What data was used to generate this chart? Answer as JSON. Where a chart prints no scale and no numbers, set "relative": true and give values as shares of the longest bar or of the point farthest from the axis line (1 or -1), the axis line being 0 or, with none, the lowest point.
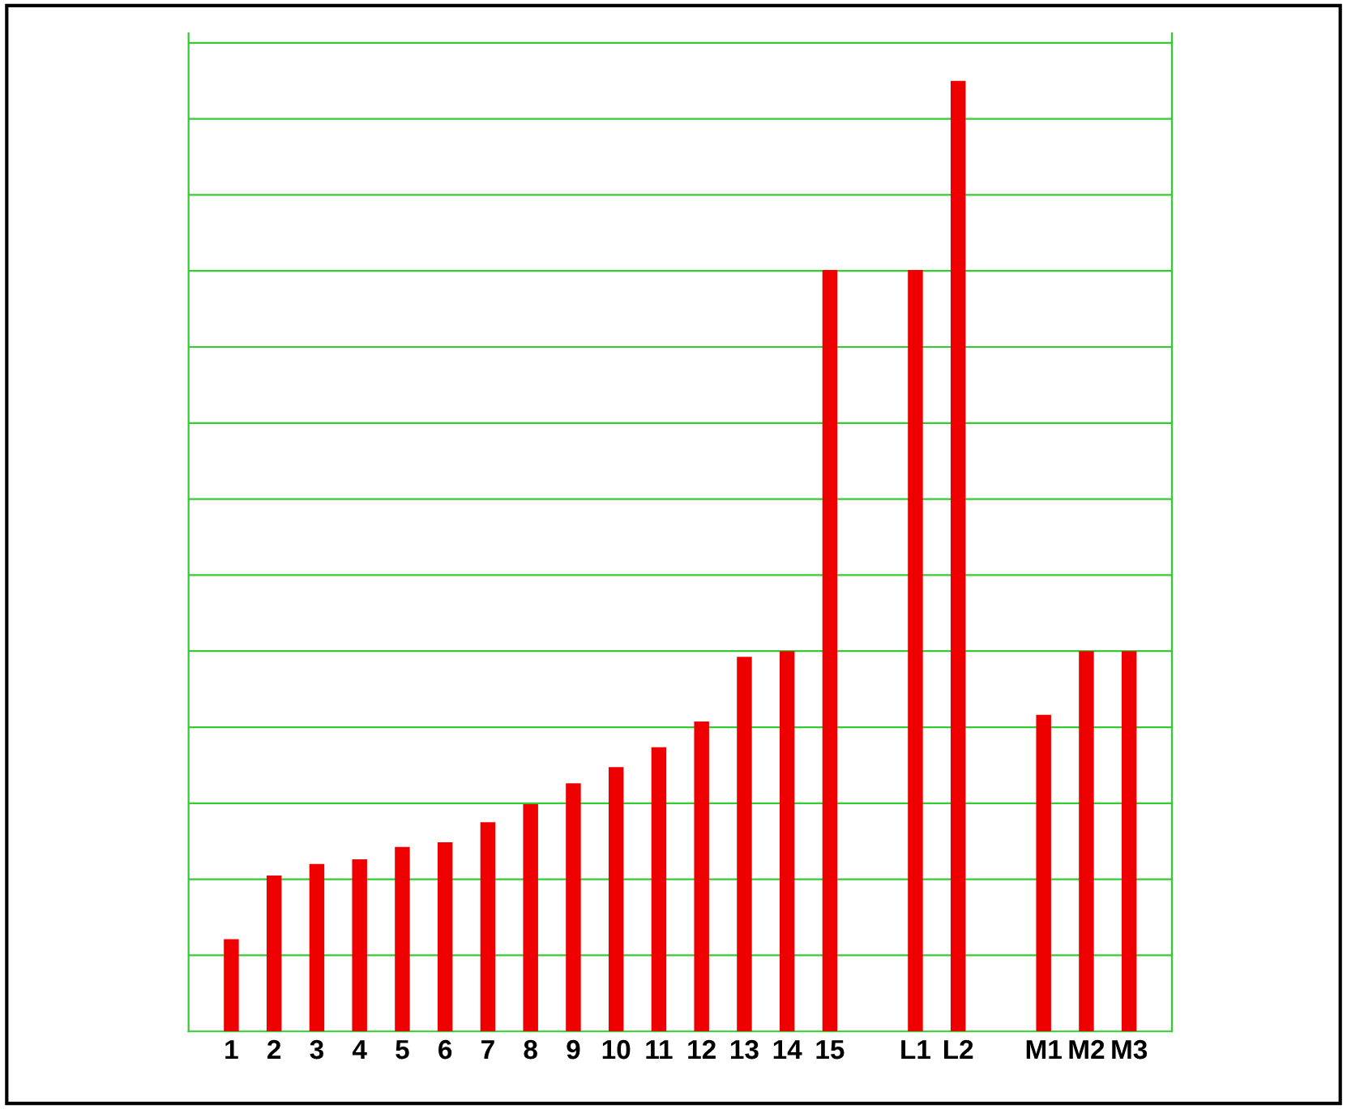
{
  "chart_data": {
    "type": "bar",
    "relative": true,
    "ref_lines": [
      {
        "axis": "y",
        "value": 0.08,
        "color": "#33cc33"
      },
      {
        "axis": "y",
        "value": 0.16,
        "color": "#33cc33"
      },
      {
        "axis": "y",
        "value": 0.24,
        "color": "#33cc33"
      },
      {
        "axis": "y",
        "value": 0.32,
        "color": "#33cc33"
      },
      {
        "axis": "y",
        "value": 0.4,
        "color": "#33cc33"
      },
      {
        "axis": "y",
        "value": 0.48,
        "color": "#33cc33"
      },
      {
        "axis": "y",
        "value": 0.56,
        "color": "#33cc33"
      },
      {
        "axis": "y",
        "value": 0.64,
        "color": "#33cc33"
      },
      {
        "axis": "y",
        "value": 0.72,
        "color": "#33cc33"
      },
      {
        "axis": "y",
        "value": 0.8,
        "color": "#33cc33"
      },
      {
        "axis": "y",
        "value": 0.88,
        "color": "#33cc33"
      },
      {
        "axis": "y",
        "value": 0.96,
        "color": "#33cc33"
      },
      {
        "axis": "y",
        "value": 1.04,
        "color": "#33cc33"
      }
    ],
    "categories": [
      "1",
      "2",
      "3",
      "4",
      "5",
      "6",
      "7",
      "8",
      "9",
      "10",
      "11",
      "12",
      "13",
      "14",
      "15",
      null,
      "L1",
      "L2",
      null,
      "M1",
      "M2",
      "M3"
    ],
    "values": [
      0.097,
      0.164,
      0.176,
      0.181,
      0.194,
      0.199,
      0.22,
      0.239,
      0.261,
      0.278,
      0.299,
      0.326,
      0.394,
      0.4,
      0.801,
      null,
      0.801,
      1,
      null,
      0.333,
      0.4,
      0.4
    ],
    "color": "#ee0000"
  }
}
